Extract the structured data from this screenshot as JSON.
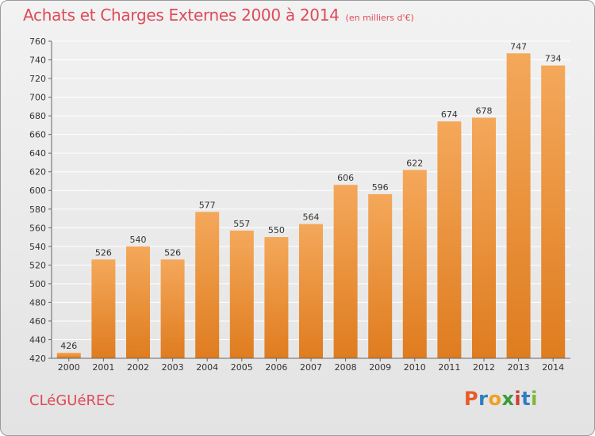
{
  "header": {
    "title": "Achats et Charges Externes 2000 à 2014",
    "subtitle": "(en milliers d'€)"
  },
  "footer": {
    "city": "CLéGUéREC",
    "logo_letters": [
      "P",
      "r",
      "o",
      "x",
      "i",
      "t",
      "i"
    ],
    "logo_colors": [
      "#e65a2a",
      "#2e7dc3",
      "#f0a020",
      "#3a9a3a",
      "#d23c3c",
      "#2e7dc3",
      "#7ab83a"
    ]
  },
  "colors": {
    "bar_top": "#f4a85a",
    "bar_bottom": "#df7c1f",
    "grid": "#ffffff",
    "title": "#de4a58"
  },
  "chart_data": {
    "type": "bar",
    "title": "Achats et Charges Externes 2000 à 2014",
    "subtitle": "(en milliers d'€)",
    "categories": [
      "2000",
      "2001",
      "2002",
      "2003",
      "2004",
      "2005",
      "2006",
      "2007",
      "2008",
      "2009",
      "2010",
      "2011",
      "2012",
      "2013",
      "2014"
    ],
    "values": [
      426,
      526,
      540,
      526,
      577,
      557,
      550,
      564,
      606,
      596,
      622,
      674,
      678,
      747,
      734
    ],
    "ylim": [
      420,
      760
    ],
    "yticks": [
      420,
      440,
      460,
      480,
      500,
      520,
      540,
      560,
      580,
      600,
      620,
      640,
      660,
      680,
      700,
      720,
      740,
      760
    ],
    "grid": true,
    "xlabel": "",
    "ylabel": ""
  }
}
